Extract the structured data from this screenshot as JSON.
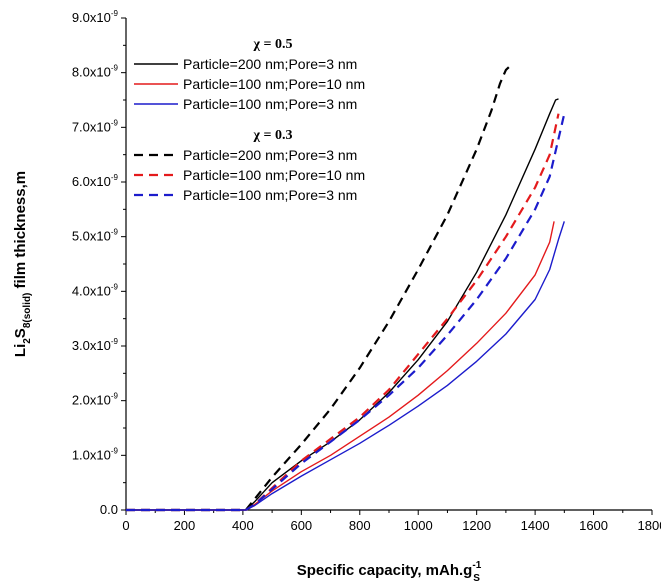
{
  "chart_data": {
    "type": "line",
    "xlabel": "Specific capacity, mAh.g",
    "xlabel_sup": "-1",
    "xlabel_sub": "S",
    "ylabel_parts": [
      "Li",
      "2",
      "S",
      "8(solid)",
      " film thickness,m"
    ],
    "xlim": [
      0,
      1800
    ],
    "ylim": [
      0,
      9e-09
    ],
    "x_ticks": [
      0,
      200,
      400,
      600,
      800,
      1000,
      1200,
      1400,
      1600,
      1800
    ],
    "x_tick_labels": [
      "0",
      "200",
      "400",
      "600",
      "800",
      "1000",
      "1200",
      "1400",
      "1600",
      "1800"
    ],
    "y_ticks": [
      0,
      1e-09,
      2e-09,
      3e-09,
      4e-09,
      5e-09,
      6e-09,
      7e-09,
      8e-09,
      9e-09
    ],
    "y_tick_labels": [
      {
        "base": "0.0",
        "exp": ""
      },
      {
        "base": "1.0x10",
        "exp": "-9"
      },
      {
        "base": "2.0x10",
        "exp": "-9"
      },
      {
        "base": "3.0x10",
        "exp": "-9"
      },
      {
        "base": "4.0x10",
        "exp": "-9"
      },
      {
        "base": "5.0x10",
        "exp": "-9"
      },
      {
        "base": "6.0x10",
        "exp": "-9"
      },
      {
        "base": "7.0x10",
        "exp": "-9"
      },
      {
        "base": "8.0x10",
        "exp": "-9"
      },
      {
        "base": "9.0x10",
        "exp": "-9"
      }
    ],
    "legend_groups": [
      {
        "title": "χ = 0.5",
        "series": [
          0,
          1,
          2
        ]
      },
      {
        "title": "χ = 0.3",
        "series": [
          3,
          4,
          5
        ]
      }
    ],
    "legend_position": "top-left",
    "grid": false,
    "series": [
      {
        "name": "Particle=200 nm;Pore=3 nm",
        "color": "#000000",
        "dash": "solid",
        "x": [
          0,
          410,
          440,
          500,
          600,
          700,
          800,
          900,
          1000,
          1100,
          1200,
          1300,
          1400,
          1450,
          1470,
          1480
        ],
        "y": [
          0,
          0,
          1.5e-10,
          5e-10,
          9e-10,
          1.25e-09,
          1.65e-09,
          2.15e-09,
          2.75e-09,
          3.45e-09,
          4.35e-09,
          5.4e-09,
          6.6e-09,
          7.25e-09,
          7.5e-09,
          7.52e-09
        ]
      },
      {
        "name": "Particle=100 nm;Pore=10 nm",
        "color": "#e41a1c",
        "dash": "solid",
        "x": [
          0,
          410,
          440,
          500,
          600,
          700,
          800,
          900,
          1000,
          1100,
          1200,
          1300,
          1400,
          1450,
          1460,
          1465
        ],
        "y": [
          0,
          0,
          1e-10,
          3.5e-10,
          7e-10,
          1e-09,
          1.35e-09,
          1.7e-09,
          2.1e-09,
          2.55e-09,
          3.05e-09,
          3.6e-09,
          4.3e-09,
          4.9e-09,
          5.15e-09,
          5.28e-09
        ]
      },
      {
        "name": "Particle=100 nm;Pore=3 nm",
        "color": "#1c1ccc",
        "dash": "solid",
        "x": [
          0,
          410,
          440,
          500,
          600,
          700,
          800,
          900,
          1000,
          1100,
          1200,
          1300,
          1400,
          1450,
          1480,
          1500
        ],
        "y": [
          0,
          0,
          8e-11,
          3e-10,
          6.2e-10,
          9.2e-10,
          1.22e-09,
          1.55e-09,
          1.9e-09,
          2.28e-09,
          2.72e-09,
          3.22e-09,
          3.85e-09,
          4.4e-09,
          4.95e-09,
          5.28e-09
        ]
      },
      {
        "name": "Particle=200 nm;Pore=3 nm",
        "color": "#000000",
        "dash": "dashed",
        "x": [
          0,
          410,
          440,
          500,
          600,
          700,
          800,
          900,
          1000,
          1100,
          1200,
          1250,
          1280,
          1300,
          1310
        ],
        "y": [
          0,
          0,
          2e-10,
          6e-10,
          1.2e-09,
          1.85e-09,
          2.6e-09,
          3.45e-09,
          4.4e-09,
          5.4e-09,
          6.6e-09,
          7.3e-09,
          7.8e-09,
          8.05e-09,
          8.1e-09
        ]
      },
      {
        "name": "Particle=100 nm;Pore=10 nm",
        "color": "#e41a1c",
        "dash": "dashed",
        "x": [
          0,
          410,
          440,
          500,
          600,
          700,
          800,
          900,
          1000,
          1100,
          1200,
          1300,
          1400,
          1450,
          1480
        ],
        "y": [
          0,
          0,
          1e-10,
          4e-10,
          9e-10,
          1.3e-09,
          1.7e-09,
          2.2e-09,
          2.85e-09,
          3.5e-09,
          4.2e-09,
          5e-09,
          5.9e-09,
          6.5e-09,
          7.25e-09
        ]
      },
      {
        "name": "Particle=100 nm;Pore=3 nm",
        "color": "#1c1ccc",
        "dash": "dashed",
        "x": [
          0,
          410,
          440,
          500,
          600,
          700,
          800,
          900,
          1000,
          1100,
          1200,
          1300,
          1400,
          1450,
          1500
        ],
        "y": [
          0,
          0,
          1e-10,
          3.8e-10,
          8.5e-10,
          1.25e-09,
          1.65e-09,
          2.1e-09,
          2.6e-09,
          3.2e-09,
          3.85e-09,
          4.6e-09,
          5.5e-09,
          6.1e-09,
          7.25e-09
        ]
      }
    ]
  }
}
